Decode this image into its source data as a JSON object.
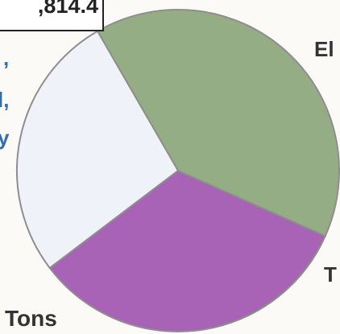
{
  "chart_data": {
    "type": "pie",
    "total_label": ",814.4",
    "slices": [
      {
        "label": "El",
        "value": 40,
        "color": "#94ad85"
      },
      {
        "label": "T",
        "value": 33,
        "color": "#a862b6"
      },
      {
        "label": "Tons",
        "value": 27,
        "color": "#eff2f9"
      }
    ],
    "side_label_lines": [
      ",",
      "l,",
      "y"
    ],
    "side_label_color": "#2f6fb0",
    "label_color": "#333333",
    "stroke_color": "#8e8e8e"
  }
}
